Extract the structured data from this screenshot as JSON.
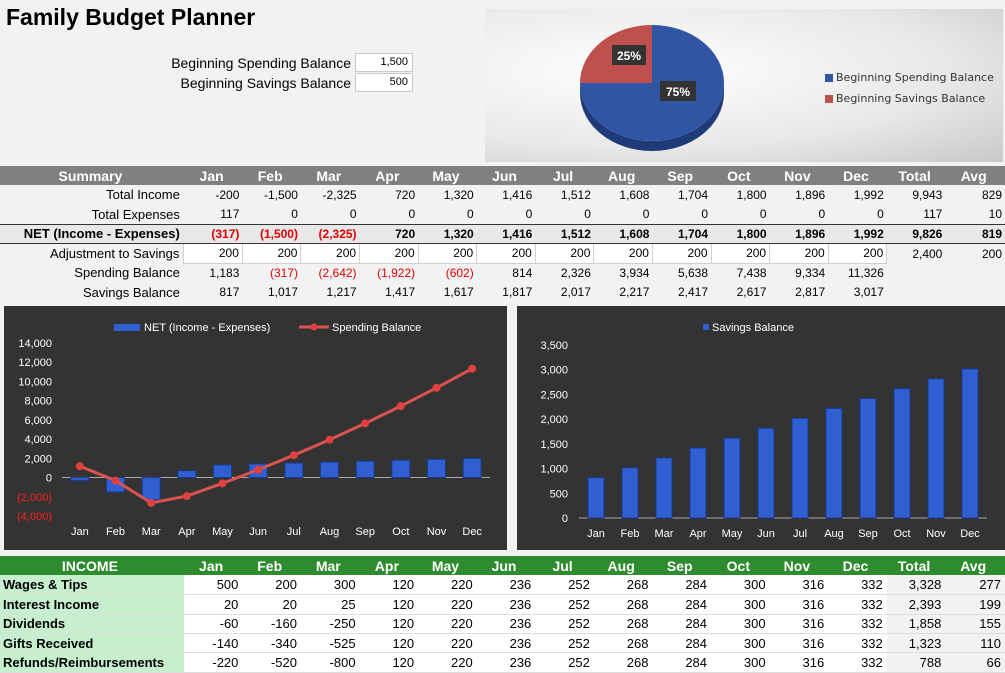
{
  "title": "Family Budget Planner",
  "balances": {
    "spending_label": "Beginning Spending Balance",
    "spending_value": "1,500",
    "savings_label": "Beginning Savings Balance",
    "savings_value": "500"
  },
  "pie": {
    "spending_pct": "75%",
    "savings_pct": "25%",
    "legend": [
      "Beginning Spending Balance",
      "Beginning Savings Balance"
    ],
    "colors": {
      "spending": "#2f55a4",
      "savings": "#c0504d"
    }
  },
  "months": [
    "Jan",
    "Feb",
    "Mar",
    "Apr",
    "May",
    "Jun",
    "Jul",
    "Aug",
    "Sep",
    "Oct",
    "Nov",
    "Dec"
  ],
  "summary": {
    "header": "Summary",
    "total_label": "Total",
    "avg_label": "Avg",
    "rows": [
      {
        "label": "Total Income",
        "values": [
          "-200",
          "-1,500",
          "-2,325",
          "720",
          "1,320",
          "1,416",
          "1,512",
          "1,608",
          "1,704",
          "1,800",
          "1,896",
          "1,992"
        ],
        "total": "9,943",
        "avg": "829"
      },
      {
        "label": "Total Expenses",
        "values": [
          "117",
          "0",
          "0",
          "0",
          "0",
          "0",
          "0",
          "0",
          "0",
          "0",
          "0",
          "0"
        ],
        "total": "117",
        "avg": "10"
      },
      {
        "label": "NET (Income - Expenses)",
        "values": [
          "(317)",
          "(1,500)",
          "(2,325)",
          "720",
          "1,320",
          "1,416",
          "1,512",
          "1,608",
          "1,704",
          "1,800",
          "1,896",
          "1,992"
        ],
        "total": "9,826",
        "avg": "819"
      },
      {
        "label": "Adjustment to Savings",
        "values": [
          "200",
          "200",
          "200",
          "200",
          "200",
          "200",
          "200",
          "200",
          "200",
          "200",
          "200",
          "200"
        ],
        "total": "2,400",
        "avg": "200"
      },
      {
        "label": "Spending Balance",
        "values": [
          "1,183",
          "(317)",
          "(2,642)",
          "(1,922)",
          "(602)",
          "814",
          "2,326",
          "3,934",
          "5,638",
          "7,438",
          "9,334",
          "11,326"
        ],
        "total": "",
        "avg": ""
      },
      {
        "label": "Savings Balance",
        "values": [
          "817",
          "1,017",
          "1,217",
          "1,417",
          "1,617",
          "1,817",
          "2,017",
          "2,217",
          "2,417",
          "2,617",
          "2,817",
          "3,017"
        ],
        "total": "",
        "avg": ""
      }
    ]
  },
  "chart_data": [
    {
      "type": "bar",
      "title": "",
      "categories": [
        "Jan",
        "Feb",
        "Mar",
        "Apr",
        "May",
        "Jun",
        "Jul",
        "Aug",
        "Sep",
        "Oct",
        "Nov",
        "Dec"
      ],
      "series": [
        {
          "name": "NET (Income - Expenses)",
          "type": "bar",
          "values": [
            -317,
            -1500,
            -2325,
            720,
            1320,
            1416,
            1512,
            1608,
            1704,
            1800,
            1896,
            1992
          ]
        },
        {
          "name": "Spending Balance",
          "type": "line",
          "values": [
            1183,
            -317,
            -2642,
            -1922,
            -602,
            814,
            2326,
            3934,
            5638,
            7438,
            9334,
            11326
          ]
        }
      ],
      "ylim": [
        -4000,
        14000
      ],
      "yticks": [
        "14,000",
        "12,000",
        "10,000",
        "8,000",
        "6,000",
        "4,000",
        "2,000",
        "0",
        "(2,000)",
        "(4,000)"
      ],
      "ytick_values": [
        14000,
        12000,
        10000,
        8000,
        6000,
        4000,
        2000,
        0,
        -2000,
        -4000
      ],
      "legend": "top"
    },
    {
      "type": "bar",
      "title": "",
      "categories": [
        "Jan",
        "Feb",
        "Mar",
        "Apr",
        "May",
        "Jun",
        "Jul",
        "Aug",
        "Sep",
        "Oct",
        "Nov",
        "Dec"
      ],
      "series": [
        {
          "name": "Savings Balance",
          "values": [
            817,
            1017,
            1217,
            1417,
            1617,
            1817,
            2017,
            2217,
            2417,
            2617,
            2817,
            3017
          ]
        }
      ],
      "ylim": [
        0,
        3500
      ],
      "yticks": [
        "3,500",
        "3,000",
        "2,500",
        "2,000",
        "1,500",
        "1,000",
        "500",
        "0"
      ],
      "ytick_values": [
        3500,
        3000,
        2500,
        2000,
        1500,
        1000,
        500,
        0
      ],
      "legend": "top"
    }
  ],
  "income": {
    "header": "INCOME",
    "total_label": "Total",
    "avg_label": "Avg",
    "rows": [
      {
        "label": "Wages & Tips",
        "values": [
          "500",
          "200",
          "300",
          "120",
          "220",
          "236",
          "252",
          "268",
          "284",
          "300",
          "316",
          "332"
        ],
        "total": "3,328",
        "avg": "277"
      },
      {
        "label": "Interest Income",
        "values": [
          "20",
          "20",
          "25",
          "120",
          "220",
          "236",
          "252",
          "268",
          "284",
          "300",
          "316",
          "332"
        ],
        "total": "2,393",
        "avg": "199"
      },
      {
        "label": "Dividends",
        "values": [
          "-60",
          "-160",
          "-250",
          "120",
          "220",
          "236",
          "252",
          "268",
          "284",
          "300",
          "316",
          "332"
        ],
        "total": "1,858",
        "avg": "155"
      },
      {
        "label": "Gifts Received",
        "values": [
          "-140",
          "-340",
          "-525",
          "120",
          "220",
          "236",
          "252",
          "268",
          "284",
          "300",
          "316",
          "332"
        ],
        "total": "1,323",
        "avg": "110"
      },
      {
        "label": "Refunds/Reimbursements",
        "values": [
          "-220",
          "-520",
          "-800",
          "120",
          "220",
          "236",
          "252",
          "268",
          "284",
          "300",
          "316",
          "332"
        ],
        "total": "788",
        "avg": "66"
      }
    ]
  }
}
